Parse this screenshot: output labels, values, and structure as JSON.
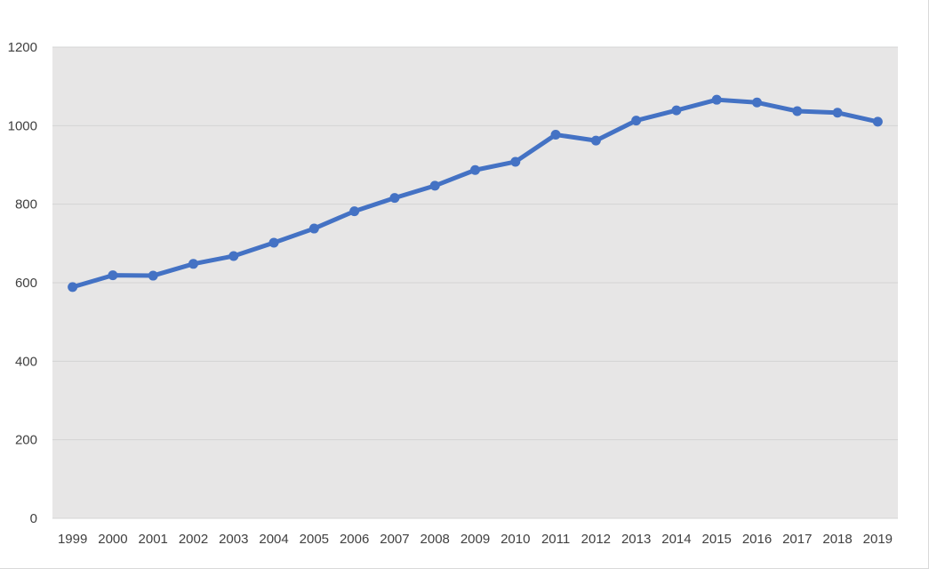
{
  "chart_data": {
    "type": "line",
    "title": "",
    "xlabel": "",
    "ylabel": "",
    "x": [
      "1999",
      "2000",
      "2001",
      "2002",
      "2003",
      "2004",
      "2005",
      "2006",
      "2007",
      "2008",
      "2009",
      "2010",
      "2011",
      "2012",
      "2013",
      "2014",
      "2015",
      "2016",
      "2017",
      "2018",
      "2019"
    ],
    "series": [
      {
        "values": [
          589,
          619,
          618,
          648,
          668,
          702,
          738,
          782,
          816,
          847,
          887,
          908,
          977,
          962,
          1013,
          1039,
          1066,
          1059,
          1037,
          1033,
          1010
        ]
      }
    ],
    "ylim": [
      0,
      1200
    ],
    "yticks": [
      "0",
      "200",
      "400",
      "600",
      "800",
      "1000",
      "1200"
    ],
    "grid": true,
    "legend": "none",
    "colors": {
      "plot_background": "#e7e6e6",
      "gridline": "#d4d4d4",
      "series": "#4472c4",
      "tick_text": "#404040"
    }
  }
}
